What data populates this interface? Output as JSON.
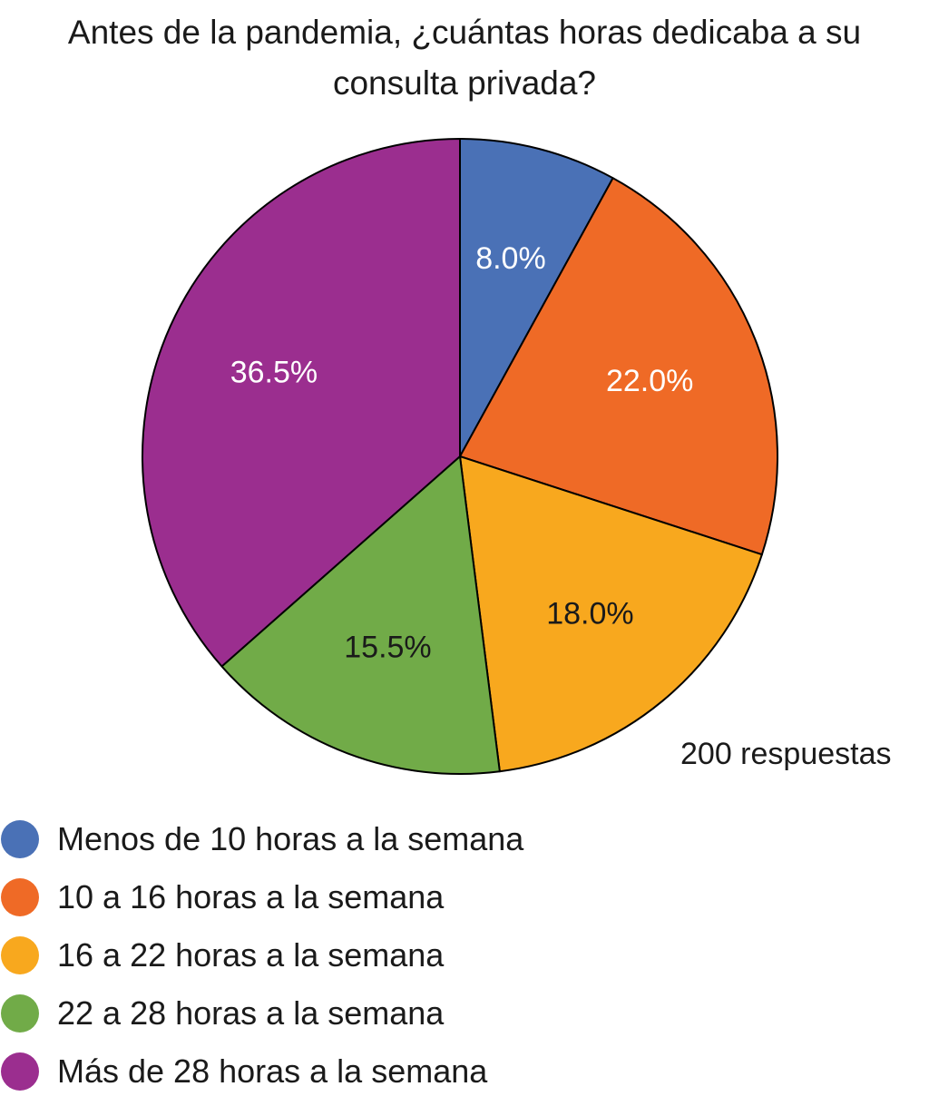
{
  "chart_data": {
    "type": "pie",
    "title_lines": [
      "Antes de la pandemia, ¿cuántas horas dedicaba a su",
      "consulta privada?"
    ],
    "responses_note": "200 respuestas",
    "slices": [
      {
        "label": "Menos de 10 horas a la semana",
        "value": 8.0,
        "display": "8.0%",
        "color": "#4a71b6",
        "label_color": "#ffffff"
      },
      {
        "label": "10 a 16 horas a la semana",
        "value": 22.0,
        "display": "22.0%",
        "color": "#ef6a26",
        "label_color": "#ffffff"
      },
      {
        "label": "16 a 22 horas a la semana",
        "value": 18.0,
        "display": "18.0%",
        "color": "#f8a81e",
        "label_color": "#1a1a1a"
      },
      {
        "label": "22 a 28 horas a la semana",
        "value": 15.5,
        "display": "15.5%",
        "color": "#71ab48",
        "label_color": "#1a1a1a"
      },
      {
        "label": "Más de 28 horas a la semana",
        "value": 36.5,
        "display": "36.5%",
        "color": "#9b2e8f",
        "label_color": "#ffffff"
      }
    ],
    "start_angle": "12 o'clock",
    "direction": "clockwise",
    "legend_position": "bottom-left"
  }
}
